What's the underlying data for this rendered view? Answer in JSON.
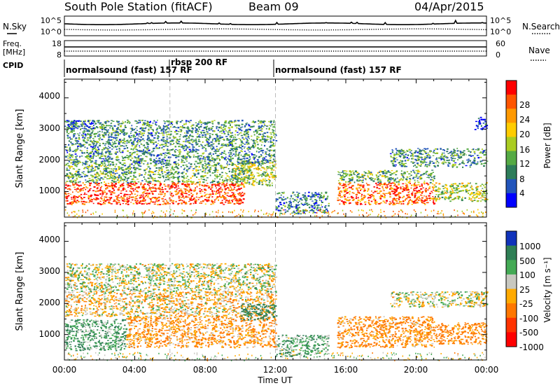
{
  "header": {
    "station": "South Pole Station (fitACF)",
    "beam": "Beam 09",
    "date": "04/Apr/2015"
  },
  "meta_panels": {
    "nsky_label": "N.Sky",
    "nsky_ticks": [
      "10^5",
      "10^0"
    ],
    "nsearch_label": "N.Search",
    "nsearch_ticks": [
      "10^5",
      "10^0"
    ],
    "freq_label_1": "Freq.",
    "freq_label_2": "[MHz]",
    "freq_ticks": [
      "18",
      "8"
    ],
    "nave_label": "Nave",
    "nave_ticks": [
      "60",
      "0"
    ],
    "cpid_label": "CPID",
    "cpid_segments": [
      {
        "label": "normalsound (fast) 157 RF",
        "start_h": 0,
        "end_h": 6
      },
      {
        "label": "rbsp 200 RF",
        "start_h": 6,
        "end_h": 12
      },
      {
        "label": "normalsound (fast) 157 RF",
        "start_h": 12,
        "end_h": 24
      }
    ]
  },
  "axes": {
    "ylabel": "Slant Range [km]",
    "yticks": [
      "1000",
      "2000",
      "3000",
      "4000"
    ],
    "xlabel": "Time UT",
    "xticks": [
      "00:00",
      "04:00",
      "08:00",
      "12:00",
      "16:00",
      "20:00",
      "00:00"
    ]
  },
  "colorbars": {
    "power": {
      "label": "Power [dB]",
      "ticks": [
        "4",
        "8",
        "12",
        "16",
        "20",
        "24",
        "28"
      ],
      "colors": [
        "#0000ff",
        "#2255bb",
        "#2e7d5a",
        "#55aa44",
        "#aacc22",
        "#ffcc00",
        "#ff9900",
        "#ff5500",
        "#ff0000"
      ]
    },
    "velocity": {
      "label": "Velocity [m s⁻¹]",
      "ticks": [
        "1000",
        "500",
        "100",
        "25",
        "-25",
        "-100",
        "-500",
        "-1000"
      ],
      "colors": [
        "#1133bb",
        "#2f7f55",
        "#44aa55",
        "#c8c8c0",
        "#ffaa00",
        "#ff7700",
        "#ff3300",
        "#ff0000"
      ]
    }
  },
  "chart_data": [
    {
      "type": "heatmap",
      "name": "power",
      "x_unit": "hours UT",
      "xlim": [
        0,
        24
      ],
      "y_unit": "slant range km",
      "ylim": [
        180,
        4600
      ],
      "vertical_markers_h": [
        6,
        12
      ],
      "colorbar_range_db": [
        0,
        32
      ],
      "regions": [
        {
          "t0": 0.0,
          "t1": 10.2,
          "r0": 600,
          "r1": 1300,
          "value": 28
        },
        {
          "t0": 0.0,
          "t1": 10.5,
          "r0": 1300,
          "r1": 1900,
          "value": 12
        },
        {
          "t0": 9.5,
          "t1": 12.0,
          "r0": 1200,
          "r1": 2000,
          "value": 16
        },
        {
          "t0": 0.0,
          "t1": 12.0,
          "r0": 1900,
          "r1": 3300,
          "value": 10
        },
        {
          "t0": 0.1,
          "t1": 1.8,
          "r0": 3000,
          "r1": 3300,
          "value": 6
        },
        {
          "t0": 12.0,
          "t1": 15.0,
          "r0": 300,
          "r1": 1000,
          "value": 8
        },
        {
          "t0": 15.5,
          "t1": 21.0,
          "r0": 600,
          "r1": 1300,
          "value": 26
        },
        {
          "t0": 15.5,
          "t1": 21.0,
          "r0": 1300,
          "r1": 1700,
          "value": 12
        },
        {
          "t0": 18.5,
          "t1": 24.0,
          "r0": 1800,
          "r1": 2400,
          "value": 10
        },
        {
          "t0": 21.0,
          "t1": 24.0,
          "r0": 700,
          "r1": 1300,
          "value": 16
        },
        {
          "t0": 23.3,
          "t1": 24.0,
          "r0": 3000,
          "r1": 3400,
          "value": 4
        }
      ]
    },
    {
      "type": "heatmap",
      "name": "velocity",
      "x_unit": "hours UT",
      "xlim": [
        0,
        24
      ],
      "y_unit": "slant range km",
      "ylim": [
        180,
        4600
      ],
      "vertical_markers_h": [
        6,
        12
      ],
      "regions": [
        {
          "t0": 0.0,
          "t1": 3.5,
          "r0": 500,
          "r1": 1500,
          "value": 100
        },
        {
          "t0": 3.5,
          "t1": 12.0,
          "r0": 600,
          "r1": 1600,
          "value": -100
        },
        {
          "t0": 0.0,
          "t1": 12.0,
          "r0": 1600,
          "r1": 2400,
          "value": -50
        },
        {
          "t0": 10.0,
          "t1": 12.0,
          "r0": 1500,
          "r1": 2000,
          "value": 300
        },
        {
          "t0": 0.0,
          "t1": 12.0,
          "r0": 2400,
          "r1": 3300,
          "value": 0
        },
        {
          "t0": 12.0,
          "t1": 15.0,
          "r0": 300,
          "r1": 1000,
          "value": 80
        },
        {
          "t0": 15.5,
          "t1": 21.0,
          "r0": 600,
          "r1": 1600,
          "value": -120
        },
        {
          "t0": 18.5,
          "t1": 24.0,
          "r0": 1900,
          "r1": 2400,
          "value": 0
        },
        {
          "t0": 21.0,
          "t1": 24.0,
          "r0": 700,
          "r1": 1400,
          "value": -150
        }
      ]
    }
  ]
}
